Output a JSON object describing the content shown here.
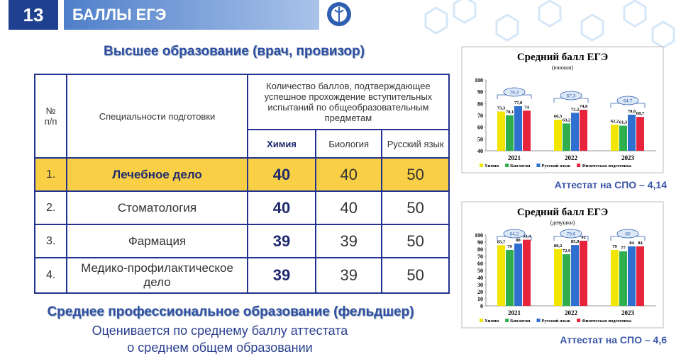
{
  "header": {
    "number": "13",
    "title": "БАЛЛЫ ЕГЭ"
  },
  "section_higher": {
    "title": "Высшее образование (врач, провизор)"
  },
  "table": {
    "header": [
      "№\nп/п",
      "Специальности подготовки",
      "Количество баллов, подтверждающее успешное прохождение вступительных испытаний по общеобразовательным предметам"
    ],
    "subheader": [
      "Химия",
      "Биология",
      "Русский язык"
    ],
    "rows": [
      [
        "1.",
        "Лечебное дело",
        40,
        40,
        50
      ],
      [
        "2.",
        "Стоматология",
        40,
        40,
        50
      ],
      [
        "3.",
        "Фармация",
        39,
        39,
        50
      ],
      [
        "4.",
        "Медико-профилактическое дело",
        39,
        39,
        50
      ]
    ]
  },
  "section_spo": {
    "title": "Среднее профессиональное образование (фельдшер)",
    "lines": [
      "Оценивается по среднему баллу аттестата",
      "о среднем общем образовании"
    ]
  },
  "chart_data": [
    {
      "type": "bar",
      "title": "Средний балл ЕГЭ",
      "subtitle": "(юноши)",
      "categories": [
        "2021",
        "2022",
        "2023"
      ],
      "series": [
        {
          "name": "Химия",
          "color": "#f2e500",
          "values": [
            73.3,
            66.3,
            62.2
          ],
          "value_labels": [
            "73,3",
            "66,3",
            "62,2"
          ]
        },
        {
          "name": "Биология",
          "color": "#2fae4e",
          "values": [
            70.1,
            63.2,
            61.3
          ],
          "value_labels": [
            "70,1",
            "63,2",
            "61,3"
          ]
        },
        {
          "name": "Русский язык",
          "color": "#2f6fd0",
          "values": [
            77.8,
            72.2,
            70.6
          ],
          "value_labels": [
            "77,8",
            "72,2",
            "70,6"
          ]
        },
        {
          "name": "Физическая подготовка",
          "color": "#e8243c",
          "values": [
            74,
            74.8,
            68.7
          ],
          "value_labels": [
            "74",
            "74,8",
            "68,7"
          ]
        }
      ],
      "averages": {
        "values": [
          76.3,
          67.3,
          64.7
        ],
        "value_labels": [
          "76,3",
          "67,3",
          "64,7"
        ]
      },
      "ylim": [
        40,
        100
      ],
      "yticks": [
        40,
        50,
        60,
        70,
        80,
        90,
        100
      ],
      "grid": false,
      "caption": "Аттестат на СПО – 4,14"
    },
    {
      "type": "bar",
      "title": "Средний балл ЕГЭ",
      "subtitle": "(девушки)",
      "categories": [
        "2021",
        "2022",
        "2023"
      ],
      "series": [
        {
          "name": "Химия",
          "color": "#f2e500",
          "values": [
            85.7,
            80.2,
            79
          ],
          "value_labels": [
            "85,7",
            "80,2",
            "79"
          ]
        },
        {
          "name": "Биология",
          "color": "#2fae4e",
          "values": [
            79,
            72.9,
            77
          ],
          "value_labels": [
            "79",
            "72,9",
            "77"
          ]
        },
        {
          "name": "Русский язык",
          "color": "#2f6fd0",
          "values": [
            88,
            85.9,
            84
          ],
          "value_labels": [
            "88",
            "85,9",
            "84"
          ]
        },
        {
          "name": "Физическая подготовка",
          "color": "#e8243c",
          "values": [
            93.4,
            92,
            84
          ],
          "value_labels": [
            "93,4",
            "92",
            "84"
          ]
        }
      ],
      "averages": {
        "values": [
          84.2,
          79.6,
          80
        ],
        "value_labels": [
          "84,2",
          "79,6",
          "80"
        ]
      },
      "ylim": [
        0,
        100
      ],
      "yticks": [
        0,
        10,
        20,
        30,
        40,
        50,
        60,
        70,
        80,
        90,
        100
      ],
      "grid": false,
      "caption": "Аттестат на СПО – 4,6"
    }
  ]
}
